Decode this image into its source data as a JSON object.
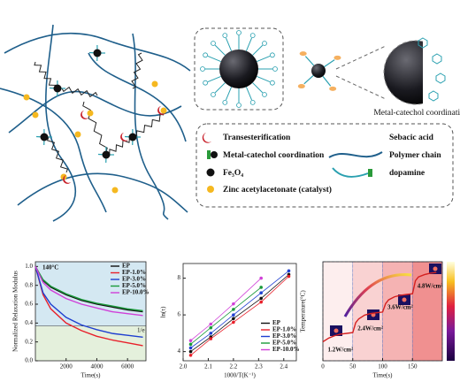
{
  "diagram": {
    "caption": "Metal-catechol coordination",
    "legend": [
      "Transesterification",
      "Sebacic acid",
      "Metal-catechol coordination",
      "Polymer chain",
      "Fe₃O₄",
      "dopamine",
      "Zinc acetylacetonate (catalyst)"
    ]
  },
  "chart_data": [
    {
      "type": "line",
      "xlabel": "Time(s)",
      "ylabel": "Normalized Relaxation Modulus",
      "annotation": "140°C",
      "x": [
        0,
        500,
        1000,
        2000,
        3000,
        4000,
        5000,
        6000,
        7000
      ],
      "series": [
        {
          "name": "EP",
          "color": "#111111",
          "values": [
            1.0,
            0.85,
            0.78,
            0.7,
            0.64,
            0.6,
            0.57,
            0.54,
            0.52
          ]
        },
        {
          "name": "EP-1.0%",
          "color": "#e8202a",
          "values": [
            1.0,
            0.7,
            0.55,
            0.4,
            0.32,
            0.26,
            0.22,
            0.19,
            0.16
          ]
        },
        {
          "name": "EP-3.0%",
          "color": "#1f3fd0",
          "values": [
            1.0,
            0.72,
            0.6,
            0.46,
            0.38,
            0.33,
            0.29,
            0.27,
            0.25
          ]
        },
        {
          "name": "EP-5.0%",
          "color": "#1a9a3a",
          "values": [
            1.0,
            0.86,
            0.79,
            0.71,
            0.65,
            0.61,
            0.58,
            0.55,
            0.53
          ]
        },
        {
          "name": "EP-10.0%",
          "color": "#d040d8",
          "values": [
            1.0,
            0.83,
            0.75,
            0.66,
            0.6,
            0.56,
            0.52,
            0.5,
            0.48
          ]
        }
      ],
      "reference_line": {
        "value": 0.368,
        "label": "1/e"
      },
      "xlim": [
        0,
        7200
      ],
      "xticks": [
        2000,
        4000,
        6000
      ],
      "ylim": [
        0,
        1.05
      ],
      "yticks": [
        {
          "value": 0,
          "label": "0.0"
        },
        0.2,
        0.4,
        0.6,
        0.8,
        {
          "value": 1,
          "label": "1.0"
        }
      ],
      "legend": "upper right"
    },
    {
      "type": "scatter",
      "xlabel": "1000/T(K⁻¹)",
      "ylabel": "ln(τ)",
      "series": [
        {
          "name": "EP",
          "color": "#111111",
          "x": [
            2.03,
            2.11,
            2.2,
            2.31,
            2.42
          ],
          "values": [
            4.0,
            4.8,
            5.8,
            6.9,
            8.2
          ]
        },
        {
          "name": "EP-1.0%",
          "color": "#e8202a",
          "x": [
            2.03,
            2.11,
            2.2,
            2.31,
            2.42
          ],
          "values": [
            3.8,
            4.7,
            5.6,
            6.7,
            8.1
          ]
        },
        {
          "name": "EP-3.0%",
          "color": "#1f3fd0",
          "x": [
            2.03,
            2.11,
            2.2,
            2.31,
            2.42
          ],
          "values": [
            4.2,
            5.0,
            6.0,
            7.2,
            8.4
          ]
        },
        {
          "name": "EP-5.0%",
          "color": "#1a9a3a",
          "x": [
            2.03,
            2.11,
            2.2,
            2.31
          ],
          "values": [
            4.4,
            5.3,
            6.3,
            7.5
          ]
        },
        {
          "name": "EP-10.0%",
          "color": "#d040d8",
          "x": [
            2.03,
            2.11,
            2.2,
            2.31
          ],
          "values": [
            4.6,
            5.5,
            6.6,
            8.0
          ]
        }
      ],
      "xlim": [
        2.0,
        2.45
      ],
      "xticks": [
        {
          "value": 2,
          "label": "2.0"
        },
        2.1,
        2.2,
        2.3,
        2.4
      ],
      "ylim": [
        3.5,
        8.8
      ],
      "yticks": [
        4,
        6,
        8
      ],
      "legend": "lower right"
    },
    {
      "type": "line",
      "xlabel": "Time(s)",
      "ylabel": "Temperature(°C)",
      "x": [
        0,
        10,
        20,
        30,
        40,
        50,
        55,
        60,
        70,
        80,
        90,
        100,
        105,
        110,
        120,
        130,
        140,
        150,
        155,
        160,
        170,
        180,
        190
      ],
      "series": [
        {
          "color": "#d42020",
          "values": [
            25,
            30,
            33,
            35,
            36,
            37,
            50,
            55,
            60,
            62,
            63,
            64,
            75,
            80,
            84,
            86,
            87,
            88,
            105,
            110,
            113,
            115,
            116
          ]
        }
      ],
      "regions": [
        {
          "start": 0,
          "end": 50,
          "label": "1.2W/cm²",
          "color": "#fdeeee"
        },
        {
          "start": 50,
          "end": 100,
          "label": "2.4W/cm²",
          "color": "#f9d2d2"
        },
        {
          "start": 100,
          "end": 150,
          "label": "3.6W/cm²",
          "color": "#f5b3b3"
        },
        {
          "start": 150,
          "end": 200,
          "label": "4.8W/cm²",
          "color": "#f09090"
        }
      ],
      "xlim": [
        0,
        200
      ],
      "xticks": [
        0,
        50,
        100,
        150
      ],
      "ylim": [
        0,
        130
      ]
    }
  ]
}
